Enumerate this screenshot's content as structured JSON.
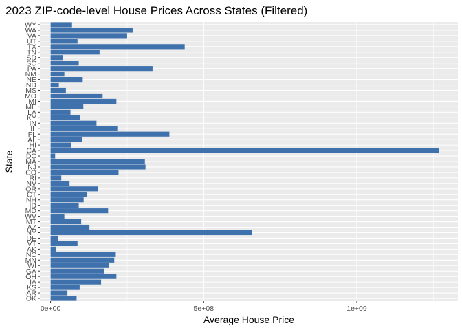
{
  "chart_data": {
    "type": "bar",
    "orientation": "horizontal",
    "title": "2023 ZIP-code-level House Prices Across States (Filtered)",
    "xlabel": "Average House Price",
    "ylabel": "State",
    "xlim": [
      -35000000,
      1330000000
    ],
    "xticks": [
      0,
      500000000,
      1000000000
    ],
    "xtick_labels": [
      "0e+00",
      "5e+08",
      "1e+09"
    ],
    "grid": true,
    "color": "#3f72ad",
    "panel_background": "#ebebeb",
    "categories": [
      "WY",
      "WA",
      "VA",
      "UT",
      "TX",
      "TN",
      "SD",
      "SC",
      "PA",
      "NM",
      "NE",
      "ND",
      "MS",
      "MO",
      "MI",
      "ME",
      "LA",
      "KY",
      "IN",
      "IL",
      "FL",
      "AL",
      "HI",
      "CA",
      "DC",
      "MA",
      "NJ",
      "CO",
      "RI",
      "NV",
      "OR",
      "CT",
      "NH",
      "ID",
      "MD",
      "WV",
      "MT",
      "AZ",
      "NY",
      "DE",
      "VT",
      "AK",
      "NC",
      "MN",
      "WI",
      "GA",
      "OH",
      "IA",
      "KS",
      "AR",
      "OK"
    ],
    "values": [
      70000000,
      268000000,
      250000000,
      88000000,
      438000000,
      160000000,
      40000000,
      92000000,
      333000000,
      45000000,
      105000000,
      27000000,
      50000000,
      170000000,
      215000000,
      107000000,
      65000000,
      97000000,
      150000000,
      218000000,
      388000000,
      102000000,
      67000000,
      1268000000,
      15000000,
      308000000,
      310000000,
      222000000,
      35000000,
      62000000,
      155000000,
      118000000,
      108000000,
      92000000,
      188000000,
      45000000,
      100000000,
      127000000,
      658000000,
      25000000,
      88000000,
      17000000,
      213000000,
      208000000,
      190000000,
      175000000,
      215000000,
      165000000,
      95000000,
      55000000,
      85000000
    ]
  }
}
